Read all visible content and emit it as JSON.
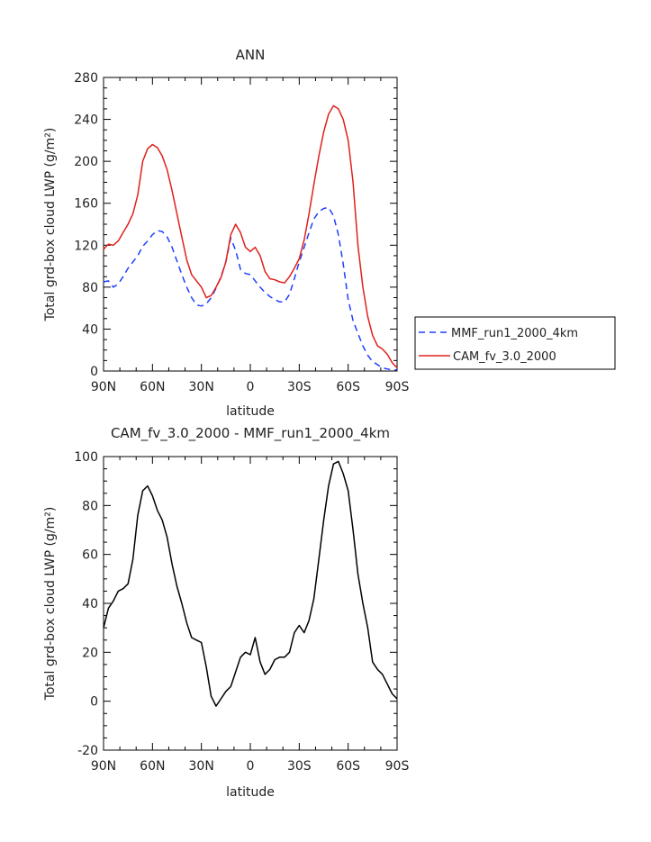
{
  "chart_data": [
    {
      "type": "line",
      "title": "ANN",
      "xlabel": "latitude",
      "ylabel": "Total grd-box cloud LWP (g/m²)",
      "xlim": [
        90,
        -90
      ],
      "ylim": [
        0,
        280
      ],
      "xticks": [
        90,
        60,
        30,
        0,
        -30,
        -60,
        -90
      ],
      "xtick_labels": [
        "90N",
        "60N",
        "30N",
        "0",
        "30S",
        "60S",
        "90S"
      ],
      "yticks": [
        0,
        40,
        80,
        120,
        160,
        200,
        240,
        280
      ],
      "ytick_labels": [
        "0",
        "40",
        "80",
        "120",
        "160",
        "200",
        "240",
        "280"
      ],
      "legend_position": "right",
      "series": [
        {
          "name": "MMF_run1_2000_4km",
          "color": "#1f3fff",
          "dash": "dashed",
          "x": [
            90,
            87,
            84,
            81,
            78,
            75,
            72,
            69,
            66,
            63,
            60,
            57,
            54,
            51,
            48,
            45,
            42,
            39,
            36,
            33,
            30,
            27,
            24,
            21,
            18,
            15,
            12,
            9,
            6,
            3,
            0,
            -3,
            -6,
            -9,
            -12,
            -15,
            -18,
            -21,
            -24,
            -27,
            -30,
            -33,
            -36,
            -39,
            -42,
            -45,
            -48,
            -51,
            -54,
            -57,
            -60,
            -63,
            -66,
            -69,
            -72,
            -75,
            -78,
            -81,
            -84,
            -87,
            -90
          ],
          "y": [
            85,
            86,
            80,
            83,
            90,
            98,
            104,
            110,
            119,
            124,
            130,
            134,
            133,
            128,
            118,
            105,
            92,
            80,
            70,
            63,
            62,
            64,
            70,
            79,
            90,
            104,
            127,
            115,
            97,
            93,
            92,
            86,
            80,
            75,
            71,
            68,
            66,
            66,
            73,
            88,
            104,
            118,
            132,
            145,
            152,
            155,
            156,
            148,
            130,
            102,
            68,
            48,
            36,
            24,
            15,
            9,
            6,
            3,
            2,
            1,
            1
          ]
        },
        {
          "name": "CAM_fv_3.0_2000",
          "color": "#e0201c",
          "dash": "solid",
          "x": [
            90,
            87,
            84,
            81,
            78,
            75,
            72,
            69,
            66,
            63,
            60,
            57,
            54,
            51,
            48,
            45,
            42,
            39,
            36,
            33,
            30,
            27,
            24,
            21,
            18,
            15,
            12,
            9,
            6,
            3,
            0,
            -3,
            -6,
            -9,
            -12,
            -15,
            -18,
            -21,
            -24,
            -27,
            -30,
            -33,
            -36,
            -39,
            -42,
            -45,
            -48,
            -51,
            -54,
            -57,
            -60,
            -63,
            -66,
            -69,
            -72,
            -75,
            -78,
            -81,
            -84,
            -87,
            -90
          ],
          "y": [
            116,
            121,
            120,
            124,
            132,
            140,
            150,
            168,
            200,
            212,
            216,
            213,
            205,
            192,
            172,
            150,
            128,
            106,
            92,
            86,
            80,
            70,
            72,
            80,
            89,
            104,
            130,
            140,
            132,
            118,
            114,
            118,
            110,
            95,
            88,
            87,
            85,
            84,
            90,
            98,
            107,
            125,
            150,
            178,
            205,
            228,
            245,
            253,
            250,
            240,
            220,
            180,
            120,
            80,
            52,
            34,
            24,
            21,
            16,
            8,
            3
          ]
        }
      ]
    },
    {
      "type": "line",
      "title": "CAM_fv_3.0_2000 - MMF_run1_2000_4km",
      "xlabel": "latitude",
      "ylabel": "Total grd-box cloud LWP (g/m²)",
      "xlim": [
        90,
        -90
      ],
      "ylim": [
        -20,
        100
      ],
      "xticks": [
        90,
        60,
        30,
        0,
        -30,
        -60,
        -90
      ],
      "xtick_labels": [
        "90N",
        "60N",
        "30N",
        "0",
        "30S",
        "60S",
        "90S"
      ],
      "yticks": [
        -20,
        0,
        20,
        40,
        60,
        80,
        100
      ],
      "ytick_labels": [
        "-20",
        "0",
        "20",
        "40",
        "60",
        "80",
        "100"
      ],
      "series": [
        {
          "color": "#000000",
          "dash": "solid",
          "x": [
            90,
            87,
            84,
            81,
            78,
            75,
            72,
            69,
            66,
            63,
            60,
            57,
            54,
            51,
            48,
            45,
            42,
            39,
            36,
            33,
            30,
            27,
            24,
            21,
            18,
            15,
            12,
            9,
            6,
            3,
            0,
            -3,
            -6,
            -9,
            -12,
            -15,
            -18,
            -21,
            -24,
            -27,
            -30,
            -33,
            -36,
            -39,
            -42,
            -45,
            -48,
            -51,
            -54,
            -57,
            -60,
            -63,
            -66,
            -69,
            -72,
            -75,
            -78,
            -81,
            -84,
            -87,
            -90
          ],
          "y": [
            30,
            38,
            41,
            45,
            46,
            48,
            58,
            76,
            86,
            88,
            84,
            78,
            74,
            67,
            56,
            47,
            40,
            32,
            26,
            25,
            24,
            14,
            2,
            -2,
            1,
            4,
            6,
            12,
            18,
            20,
            19,
            26,
            16,
            11,
            13,
            17,
            18,
            18,
            20,
            28,
            31,
            28,
            33,
            42,
            58,
            74,
            88,
            97,
            98,
            93,
            86,
            70,
            52,
            40,
            30,
            16,
            13,
            11,
            7,
            3,
            1
          ]
        }
      ]
    }
  ]
}
